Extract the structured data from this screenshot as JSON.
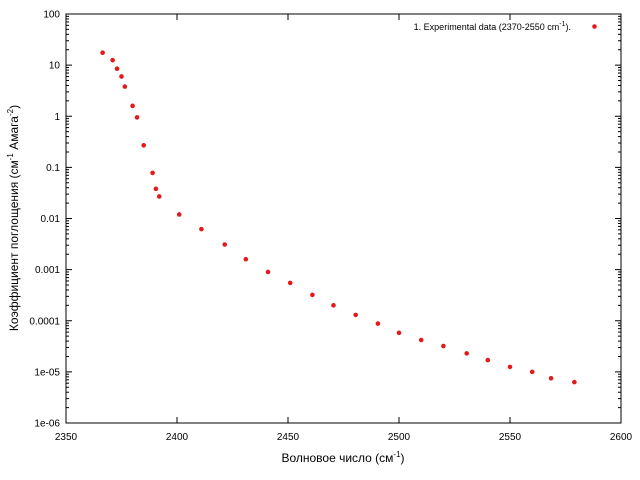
{
  "chart_data": {
    "type": "scatter",
    "xlabel_main": "Волновое число (см",
    "xlabel_sup": "-1",
    "xlabel_tail": ")",
    "ylabel_a": "Коэффициент поглощения (см",
    "ylabel_sup1": "-1",
    "ylabel_b": " Амага",
    "ylabel_sup2": "-2",
    "ylabel_c": ")",
    "xlim": [
      2350,
      2600
    ],
    "ylim": [
      1e-06,
      100
    ],
    "yscale": "log",
    "x_ticks": [
      "2350",
      "2400",
      "2450",
      "2500",
      "2550",
      "2600"
    ],
    "y_ticks": [
      "1e-06",
      "1e-05",
      "0.0001",
      "0.001",
      "0.01",
      "0.1",
      "1",
      "10",
      "100"
    ],
    "legend": {
      "position": "top-right",
      "label_main": "1. Experimental data (2370-2550 cm",
      "label_sup": "-1",
      "label_tail": ")."
    },
    "color": "#e31a1c",
    "series": [
      {
        "name": "1. Experimental data (2370-2550 cm-1).",
        "points": [
          [
            2366.5,
            17.5
          ],
          [
            2371,
            12.5
          ],
          [
            2373,
            8.5
          ],
          [
            2375,
            6.0
          ],
          [
            2376.5,
            3.8
          ],
          [
            2380,
            1.6
          ],
          [
            2382,
            0.95
          ],
          [
            2385,
            0.27
          ],
          [
            2389,
            0.078
          ],
          [
            2390.5,
            0.038
          ],
          [
            2392,
            0.027
          ],
          [
            2401,
            0.012
          ],
          [
            2411,
            0.0062
          ],
          [
            2421.5,
            0.0031
          ],
          [
            2431,
            0.0016
          ],
          [
            2441,
            0.0009
          ],
          [
            2451,
            0.00055
          ],
          [
            2461,
            0.00032
          ],
          [
            2470.5,
            0.0002
          ],
          [
            2480.5,
            0.00013
          ],
          [
            2490.5,
            8.8e-05
          ],
          [
            2500,
            5.8e-05
          ],
          [
            2510,
            4.2e-05
          ],
          [
            2520,
            3.2e-05
          ],
          [
            2530.5,
            2.3e-05
          ],
          [
            2540,
            1.7e-05
          ],
          [
            2550,
            1.25e-05
          ],
          [
            2560,
            1e-05
          ],
          [
            2568.5,
            7.5e-06
          ],
          [
            2579,
            6.3e-06
          ]
        ]
      }
    ]
  }
}
